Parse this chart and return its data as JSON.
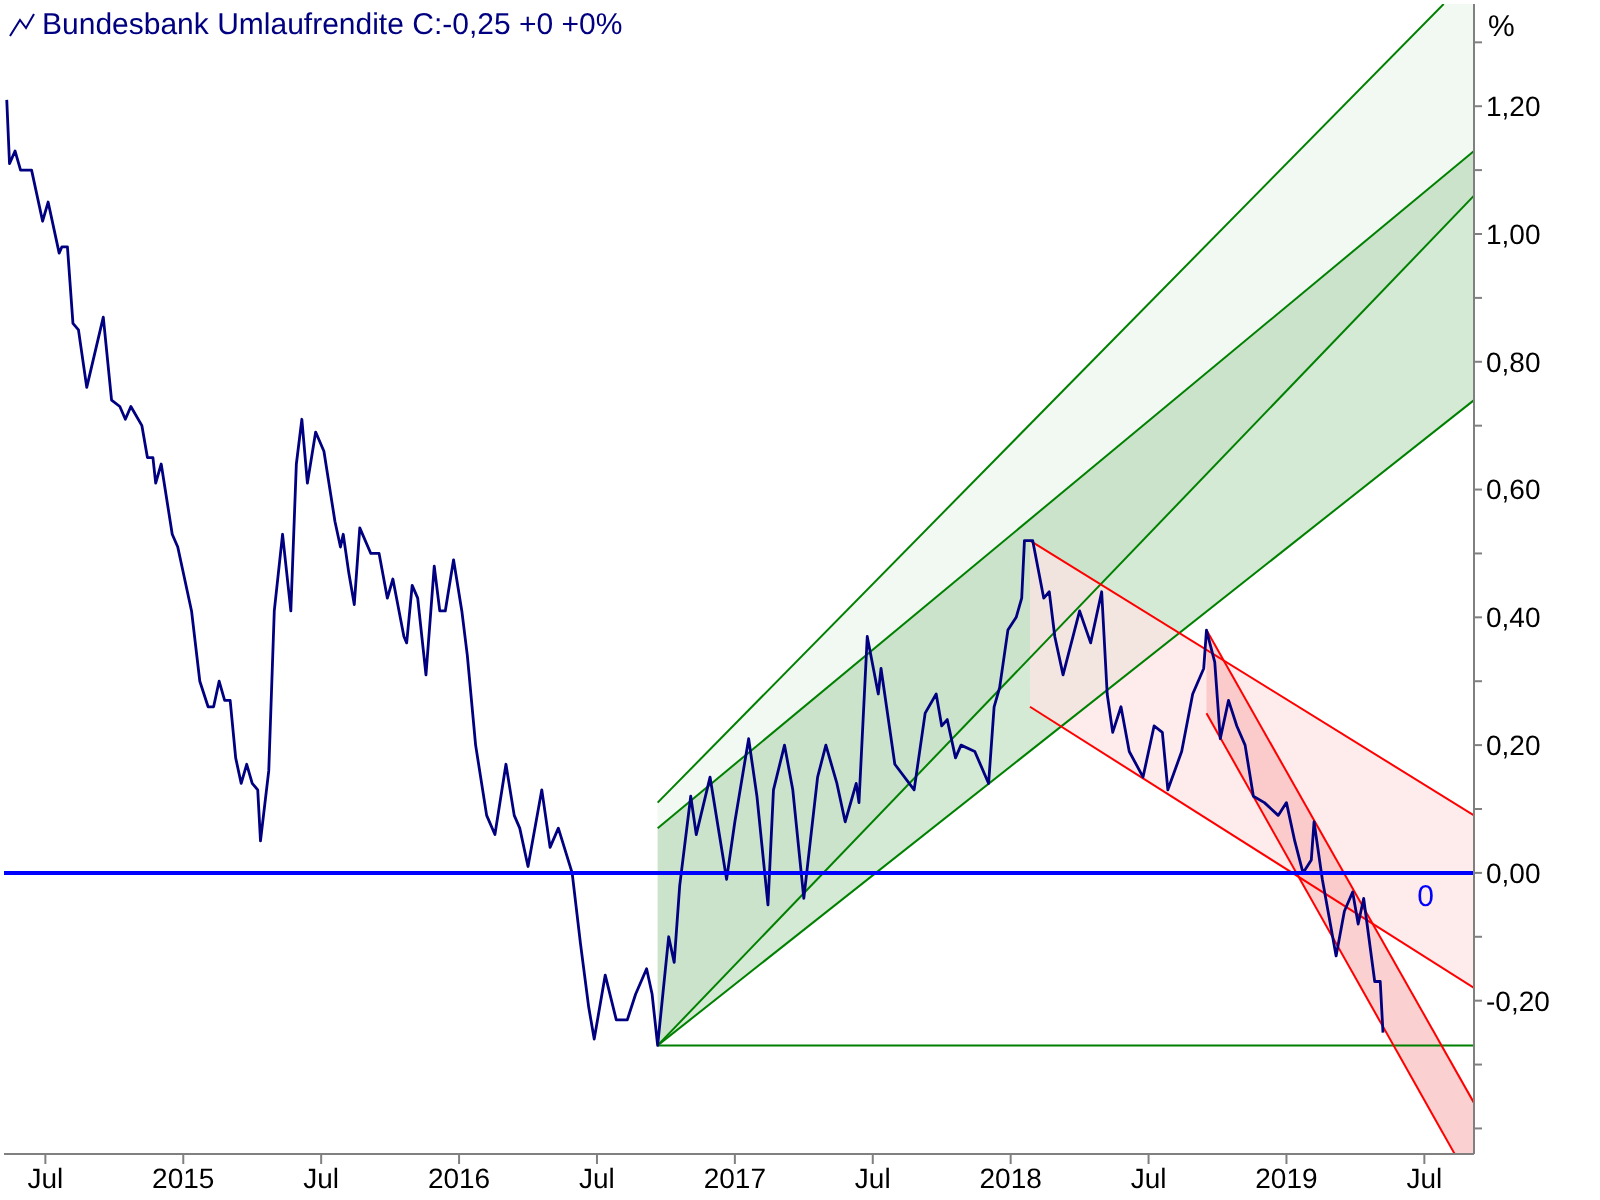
{
  "chart_data": {
    "type": "line",
    "title": "Bundesbank Umlaufrendite C:-0,25 +0 +0%",
    "ylabel": "%",
    "x": [
      2014.36,
      2014.37,
      2014.39,
      2014.41,
      2014.45,
      2014.49,
      2014.51,
      2014.55,
      2014.56,
      2014.58,
      2014.6,
      2014.62,
      2014.65,
      2014.71,
      2014.74,
      2014.77,
      2014.79,
      2014.81,
      2014.85,
      2014.87,
      2014.89,
      2014.9,
      2014.92,
      2014.96,
      2014.98,
      2015.03,
      2015.06,
      2015.09,
      2015.11,
      2015.13,
      2015.15,
      2015.17,
      2015.19,
      2015.21,
      2015.23,
      2015.25,
      2015.27,
      2015.28,
      2015.31,
      2015.33,
      2015.36,
      2015.39,
      2015.41,
      2015.43,
      2015.45,
      2015.48,
      2015.51,
      2015.55,
      2015.57,
      2015.58,
      2015.6,
      2015.62,
      2015.64,
      2015.68,
      2015.71,
      2015.74,
      2015.76,
      2015.8,
      2015.81,
      2015.83,
      2015.85,
      2015.88,
      2015.91,
      2015.93,
      2015.95,
      2015.98,
      2016.01,
      2016.03,
      2016.06,
      2016.1,
      2016.13,
      2016.17,
      2016.2,
      2016.22,
      2016.25,
      2016.3,
      2016.33,
      2016.36,
      2016.41,
      2016.44,
      2016.47,
      2016.49,
      2016.53,
      2016.57,
      2016.61,
      2016.64,
      2016.68,
      2016.7,
      2016.72,
      2016.76,
      2016.78,
      2016.8,
      2016.84,
      2016.86,
      2016.91,
      2016.94,
      2016.97,
      2017.0,
      2017.05,
      2017.08,
      2017.12,
      2017.14,
      2017.18,
      2017.21,
      2017.25,
      2017.3,
      2017.33,
      2017.37,
      2017.4,
      2017.44,
      2017.45,
      2017.48,
      2017.52,
      2017.53,
      2017.58,
      2017.65,
      2017.69,
      2017.73,
      2017.75,
      2017.77,
      2017.8,
      2017.82,
      2017.87,
      2017.92,
      2017.94,
      2017.96,
      2017.99,
      2018.02,
      2018.04,
      2018.05,
      2018.08,
      2018.12,
      2018.14,
      2018.16,
      2018.19,
      2018.25,
      2018.29,
      2018.33,
      2018.35,
      2018.37,
      2018.4,
      2018.43,
      2018.48,
      2018.52,
      2018.55,
      2018.57,
      2018.62,
      2018.66,
      2018.7,
      2018.71,
      2018.74,
      2018.76,
      2018.79,
      2018.82,
      2018.85,
      2018.88,
      2018.92,
      2018.97,
      2019.0,
      2019.03,
      2019.06,
      2019.09,
      2019.1,
      2019.13,
      2019.18,
      2019.21,
      2019.24,
      2019.26,
      2019.28,
      2019.32,
      2019.34,
      2019.35
    ],
    "series": [
      {
        "type": "line",
        "color": "#008000",
        "x": [
          2016.72,
          2019.57
        ],
        "values": [
          0.11,
          1.36
        ]
      },
      {
        "type": "line",
        "color": "#008000",
        "x": [
          2016.72,
          2019.68
        ],
        "values": [
          0.07,
          1.13
        ]
      },
      {
        "type": "line",
        "color": "#008000",
        "x": [
          2016.72,
          2019.68
        ],
        "values": [
          -0.27,
          1.06
        ]
      },
      {
        "type": "line",
        "color": "#008000",
        "x": [
          2016.72,
          2019.68
        ],
        "values": [
          -0.27,
          0.74
        ]
      },
      {
        "type": "line",
        "color": "#008000",
        "x": [
          2016.72,
          2019.68
        ],
        "values": [
          -0.27,
          -0.27
        ]
      },
      {
        "type": "line",
        "color": "#ff0000",
        "x": [
          2018.07,
          2019.68
        ],
        "values": [
          0.52,
          0.09
        ]
      },
      {
        "type": "line",
        "color": "#ff0000",
        "x": [
          2018.07,
          2019.68
        ],
        "values": [
          0.26,
          -0.18
        ]
      },
      {
        "type": "line",
        "color": "#ff0000",
        "x": [
          2018.71,
          2019.68
        ],
        "values": [
          0.38,
          -0.36
        ]
      },
      {
        "type": "line",
        "color": "#ff0000",
        "x": [
          2018.71,
          2019.61
        ],
        "values": [
          0.25,
          -0.44
        ]
      },
      {
        "type": "line",
        "color": "#000080",
        "values": [
          1.21,
          1.11,
          1.13,
          1.1,
          1.1,
          1.02,
          1.05,
          0.97,
          0.98,
          0.98,
          0.86,
          0.85,
          0.76,
          0.87,
          0.74,
          0.73,
          0.71,
          0.73,
          0.7,
          0.65,
          0.65,
          0.61,
          0.64,
          0.53,
          0.51,
          0.41,
          0.3,
          0.26,
          0.26,
          0.3,
          0.27,
          0.27,
          0.18,
          0.14,
          0.17,
          0.14,
          0.13,
          0.05,
          0.16,
          0.41,
          0.53,
          0.41,
          0.64,
          0.71,
          0.61,
          0.69,
          0.66,
          0.55,
          0.51,
          0.53,
          0.47,
          0.42,
          0.54,
          0.5,
          0.5,
          0.43,
          0.46,
          0.37,
          0.36,
          0.45,
          0.43,
          0.31,
          0.48,
          0.41,
          0.41,
          0.49,
          0.41,
          0.34,
          0.2,
          0.09,
          0.06,
          0.17,
          0.09,
          0.07,
          0.01,
          0.13,
          0.04,
          0.07,
          0.0,
          -0.11,
          -0.21,
          -0.26,
          -0.16,
          -0.23,
          -0.23,
          -0.19,
          -0.15,
          -0.19,
          -0.27,
          -0.1,
          -0.14,
          -0.02,
          0.12,
          0.06,
          0.15,
          0.07,
          -0.01,
          0.08,
          0.21,
          0.12,
          -0.05,
          0.13,
          0.2,
          0.13,
          -0.04,
          0.15,
          0.2,
          0.14,
          0.08,
          0.14,
          0.11,
          0.37,
          0.28,
          0.32,
          0.17,
          0.13,
          0.25,
          0.28,
          0.23,
          0.24,
          0.18,
          0.2,
          0.19,
          0.14,
          0.26,
          0.29,
          0.38,
          0.4,
          0.43,
          0.52,
          0.52,
          0.43,
          0.44,
          0.37,
          0.31,
          0.41,
          0.36,
          0.44,
          0.28,
          0.22,
          0.26,
          0.19,
          0.15,
          0.23,
          0.22,
          0.13,
          0.19,
          0.28,
          0.32,
          0.38,
          0.33,
          0.21,
          0.27,
          0.23,
          0.2,
          0.12,
          0.11,
          0.09,
          0.11,
          0.05,
          0.0,
          0.02,
          0.08,
          -0.01,
          -0.13,
          -0.06,
          -0.03,
          -0.08,
          -0.04,
          -0.17,
          -0.17,
          -0.25
        ]
      }
    ],
    "xlim": [
      2014.35,
      2019.68
    ],
    "xticks": [
      {
        "value": 2014.5,
        "label": "Jul"
      },
      {
        "value": 2015,
        "label": "2015"
      },
      {
        "value": 2015.5,
        "label": "Jul"
      },
      {
        "value": 2016,
        "label": "2016"
      },
      {
        "value": 2016.5,
        "label": "Jul"
      },
      {
        "value": 2017,
        "label": "2017"
      },
      {
        "value": 2017.5,
        "label": "Jul"
      },
      {
        "value": 2018,
        "label": "2018"
      },
      {
        "value": 2018.5,
        "label": "Jul"
      },
      {
        "value": 2019,
        "label": "2019"
      },
      {
        "value": 2019.5,
        "label": "Jul"
      }
    ],
    "ylim": [
      -0.44,
      1.36
    ],
    "yticks": [
      {
        "value": 1.3,
        "label": null
      },
      {
        "value": 1.2,
        "label": "1,20"
      },
      {
        "value": 1.1,
        "label": null
      },
      {
        "value": 1.0,
        "label": "1,00"
      },
      {
        "value": 0.9,
        "label": null
      },
      {
        "value": 0.8,
        "label": "0,80"
      },
      {
        "value": 0.7,
        "label": null
      },
      {
        "value": 0.6,
        "label": "0,60"
      },
      {
        "value": 0.5,
        "label": null
      },
      {
        "value": 0.4,
        "label": "0,40"
      },
      {
        "value": 0.3,
        "label": null
      },
      {
        "value": 0.2,
        "label": "0,20"
      },
      {
        "value": 0.1,
        "label": null
      },
      {
        "value": 0.0,
        "label": "0,00"
      },
      {
        "value": -0.1,
        "label": null
      },
      {
        "value": -0.2,
        "label": "-0,20"
      },
      {
        "value": -0.3,
        "label": null
      },
      {
        "value": -0.4,
        "label": null
      }
    ],
    "ref_lines": [
      {
        "axis": "y",
        "value": 0,
        "label": "0",
        "color": "#0000ff"
      }
    ],
    "grid": false
  }
}
